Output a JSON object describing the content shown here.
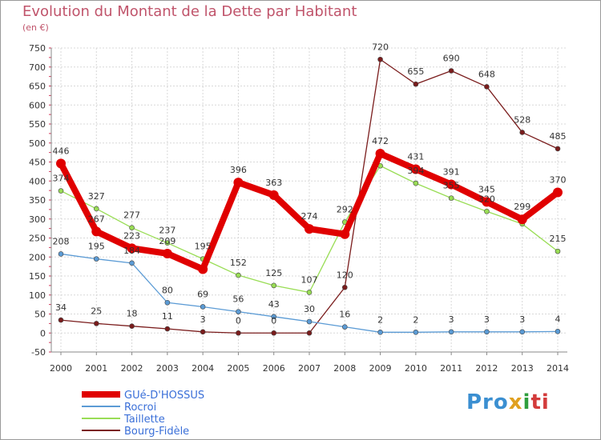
{
  "page": {
    "title": "Evolution du Montant de la Dette par Habitant",
    "unit": "(en €)",
    "logo": [
      "Pro",
      "x",
      "i",
      "ti"
    ]
  },
  "chart_data": {
    "type": "line",
    "x": [
      "2000",
      "2001",
      "2002",
      "2003",
      "2004",
      "2005",
      "2006",
      "2007",
      "2008",
      "2009",
      "2010",
      "2011",
      "2012",
      "2013",
      "2014"
    ],
    "ylim": [
      -50,
      750
    ],
    "yticks": [
      -50,
      0,
      50,
      100,
      150,
      200,
      250,
      300,
      350,
      400,
      450,
      500,
      550,
      600,
      650,
      700,
      750
    ],
    "grid": true,
    "legend_position": "bottom-left",
    "series": [
      {
        "name": "GUé-D'HOSSUS",
        "color": "#e00000",
        "values": [
          446,
          267,
          223,
          209,
          168,
          396,
          363,
          274,
          260,
          472,
          431,
          391,
          345,
          299,
          370
        ],
        "labels": [
          "446",
          "267",
          "223",
          "209",
          "",
          "396",
          "363",
          "274",
          "",
          "472",
          "431",
          "391",
          "345",
          "299",
          "370"
        ]
      },
      {
        "name": "Rocroi",
        "color": "#5b9bd5",
        "values": [
          208,
          195,
          184,
          80,
          69,
          56,
          43,
          30,
          16,
          2,
          2,
          3,
          3,
          3,
          4
        ],
        "labels": [
          "208",
          "195",
          "184",
          "80",
          "69",
          "56",
          "43",
          "30",
          "16",
          "2",
          "2",
          "3",
          "3",
          "3",
          "4"
        ]
      },
      {
        "name": "Taillette",
        "color": "#99dd55",
        "values": [
          374,
          327,
          277,
          237,
          195,
          152,
          125,
          107,
          292,
          440,
          394,
          355,
          320,
          287,
          215
        ],
        "labels": [
          "374",
          "327",
          "277",
          "237",
          "195",
          "152",
          "125",
          "107",
          "292",
          "",
          "394",
          "355",
          "320",
          "",
          "215"
        ]
      },
      {
        "name": "Bourg-Fidèle",
        "color": "#7a1c1c",
        "values": [
          34,
          25,
          18,
          11,
          3,
          0,
          0,
          0,
          120,
          720,
          655,
          690,
          648,
          528,
          485
        ],
        "labels": [
          "34",
          "25",
          "18",
          "11",
          "3",
          "0",
          "0",
          "",
          "120",
          "720",
          "655",
          "690",
          "648",
          "528",
          "485"
        ]
      }
    ]
  }
}
